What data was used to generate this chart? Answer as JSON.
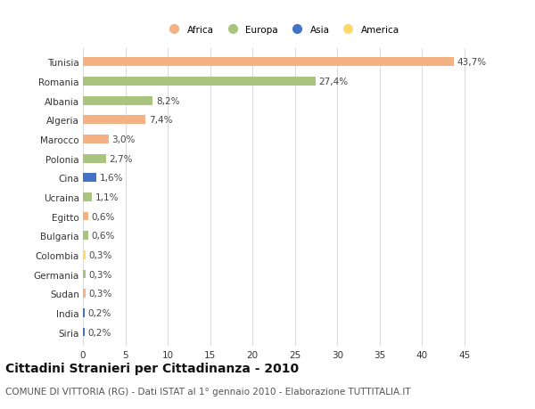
{
  "countries": [
    "Tunisia",
    "Romania",
    "Albania",
    "Algeria",
    "Marocco",
    "Polonia",
    "Cina",
    "Ucraina",
    "Egitto",
    "Bulgaria",
    "Colombia",
    "Germania",
    "Sudan",
    "India",
    "Siria"
  ],
  "values": [
    43.7,
    27.4,
    8.2,
    7.4,
    3.0,
    2.7,
    1.6,
    1.1,
    0.6,
    0.6,
    0.3,
    0.3,
    0.3,
    0.2,
    0.2
  ],
  "labels": [
    "43,7%",
    "27,4%",
    "8,2%",
    "7,4%",
    "3,0%",
    "2,7%",
    "1,6%",
    "1,1%",
    "0,6%",
    "0,6%",
    "0,3%",
    "0,3%",
    "0,3%",
    "0,2%",
    "0,2%"
  ],
  "continents": [
    "Africa",
    "Europa",
    "Europa",
    "Africa",
    "Africa",
    "Europa",
    "Asia",
    "Europa",
    "Africa",
    "Europa",
    "America",
    "Europa",
    "Africa",
    "Asia",
    "Asia"
  ],
  "colors": {
    "Africa": "#F4B183",
    "Europa": "#A9C47F",
    "Asia": "#4472C4",
    "America": "#FFD966"
  },
  "legend_order": [
    "Africa",
    "Europa",
    "Asia",
    "America"
  ],
  "xlim": [
    0,
    47
  ],
  "xticks": [
    0,
    5,
    10,
    15,
    20,
    25,
    30,
    35,
    40,
    45
  ],
  "title": "Cittadini Stranieri per Cittadinanza - 2010",
  "subtitle": "COMUNE DI VITTORIA (RG) - Dati ISTAT al 1° gennaio 2010 - Elaborazione TUTTITALIA.IT",
  "bg_color": "#ffffff",
  "grid_color": "#dddddd",
  "bar_height": 0.45,
  "title_fontsize": 10,
  "subtitle_fontsize": 7.5,
  "label_fontsize": 7.5,
  "tick_fontsize": 7.5
}
